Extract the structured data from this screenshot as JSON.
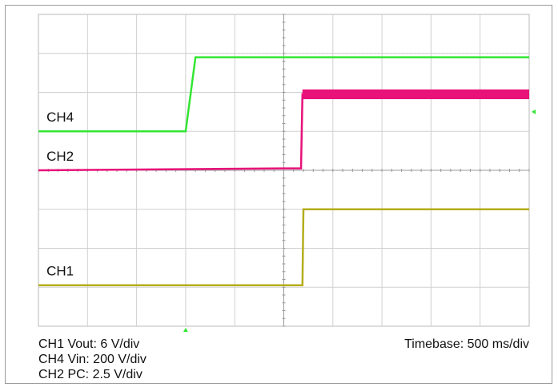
{
  "chart_data": {
    "type": "line",
    "title": "",
    "xlabel": "",
    "ylabel": "",
    "grid": true,
    "grid_divisions": {
      "x": 10,
      "y": 8
    },
    "xlim": [
      -5,
      5
    ],
    "ylim": [
      -4,
      4
    ],
    "timebase_label": "Timebase: 500 ms/div",
    "series": [
      {
        "name": "CH4",
        "label": "CH4",
        "color": "#33e633",
        "points": [
          [
            -5,
            1.0
          ],
          [
            -2.0,
            1.0
          ],
          [
            -1.8,
            2.9
          ],
          [
            5,
            2.9
          ]
        ],
        "label_pos": [
          -4.9,
          1.25
        ]
      },
      {
        "name": "CH2",
        "label": "CH2",
        "color": "#e8127a",
        "points": [
          [
            -5,
            0.0
          ],
          [
            -0.05,
            0.05
          ],
          [
            0.35,
            0.05
          ],
          [
            0.38,
            1.95
          ],
          [
            5,
            1.95
          ]
        ],
        "label_pos": [
          -4.9,
          0.25
        ],
        "band_after_step": 0.25
      },
      {
        "name": "CH1",
        "label": "CH1",
        "color": "#b5ad1c",
        "points": [
          [
            -5,
            -2.95
          ],
          [
            0.38,
            -2.95
          ],
          [
            0.4,
            -1.0
          ],
          [
            5,
            -1.0
          ]
        ],
        "label_pos": [
          -4.9,
          -2.7
        ]
      }
    ],
    "trigger_marker_x": -2.0,
    "level_marker_y": 1.5,
    "info_lines": [
      "CH1 Vout: 6 V/div",
      "CH4 Vin: 200 V/div",
      "CH2 PC: 2.5 V/div"
    ]
  }
}
